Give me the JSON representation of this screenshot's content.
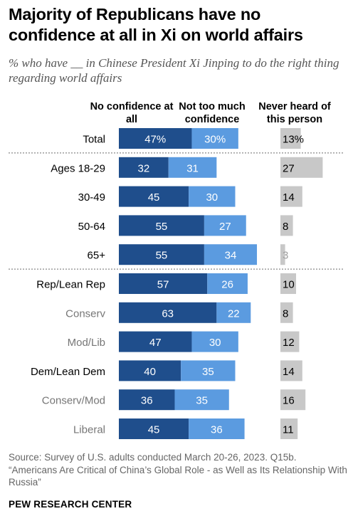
{
  "title": "Majority of Republicans have no confidence at all in Xi on world affairs",
  "subtitle": "% who have __ in Chinese President Xi Jinping to do the right thing regarding world affairs",
  "columns": {
    "no_confidence": "No confidence at all",
    "not_too_much": "Not too much confidence",
    "never_heard": "Never heard of this person"
  },
  "colors": {
    "no_confidence": "#1f4e8c",
    "not_too_much": "#5b9be0",
    "never_heard": "#c8c8c8",
    "label_dark": "#000000",
    "label_light": "#767676",
    "never_heard_faint": "#a0a0a0"
  },
  "chart_data": {
    "type": "bar",
    "stacked": true,
    "orientation": "horizontal",
    "categories": [
      "Total",
      "Ages 18-29",
      "30-49",
      "50-64",
      "65+",
      "Rep/Lean Rep",
      "Conserv",
      "Mod/Lib",
      "Dem/Lean Dem",
      "Conserv/Mod",
      "Liberal"
    ],
    "category_style": [
      "dark",
      "dark",
      "dark",
      "dark",
      "dark",
      "dark",
      "light",
      "light",
      "dark",
      "light",
      "light"
    ],
    "series": [
      {
        "name": "No confidence at all",
        "values": [
          47,
          32,
          45,
          55,
          55,
          57,
          63,
          47,
          40,
          36,
          45
        ]
      },
      {
        "name": "Not too much confidence",
        "values": [
          30,
          31,
          30,
          27,
          34,
          26,
          22,
          30,
          35,
          35,
          36
        ]
      },
      {
        "name": "Never heard of this person",
        "values": [
          13,
          27,
          14,
          8,
          3,
          10,
          8,
          12,
          14,
          16,
          11
        ]
      }
    ],
    "value_labels": [
      [
        "47%",
        "32",
        "45",
        "55",
        "55",
        "57",
        "63",
        "47",
        "40",
        "36",
        "45"
      ],
      [
        "30%",
        "31",
        "30",
        "27",
        "34",
        "26",
        "22",
        "30",
        "35",
        "35",
        "36"
      ],
      [
        "13%",
        "27",
        "14",
        "8",
        "3",
        "10",
        "8",
        "12",
        "14",
        "16",
        "11"
      ]
    ],
    "dividers_after": [
      "Total",
      "65+"
    ]
  },
  "source": "Source: Survey of U.S. adults conducted March 20-26, 2023. Q15b. “Americans Are Critical of China’s Global Role - as Well as Its Relationship With Russia”",
  "footer": "PEW RESEARCH CENTER"
}
